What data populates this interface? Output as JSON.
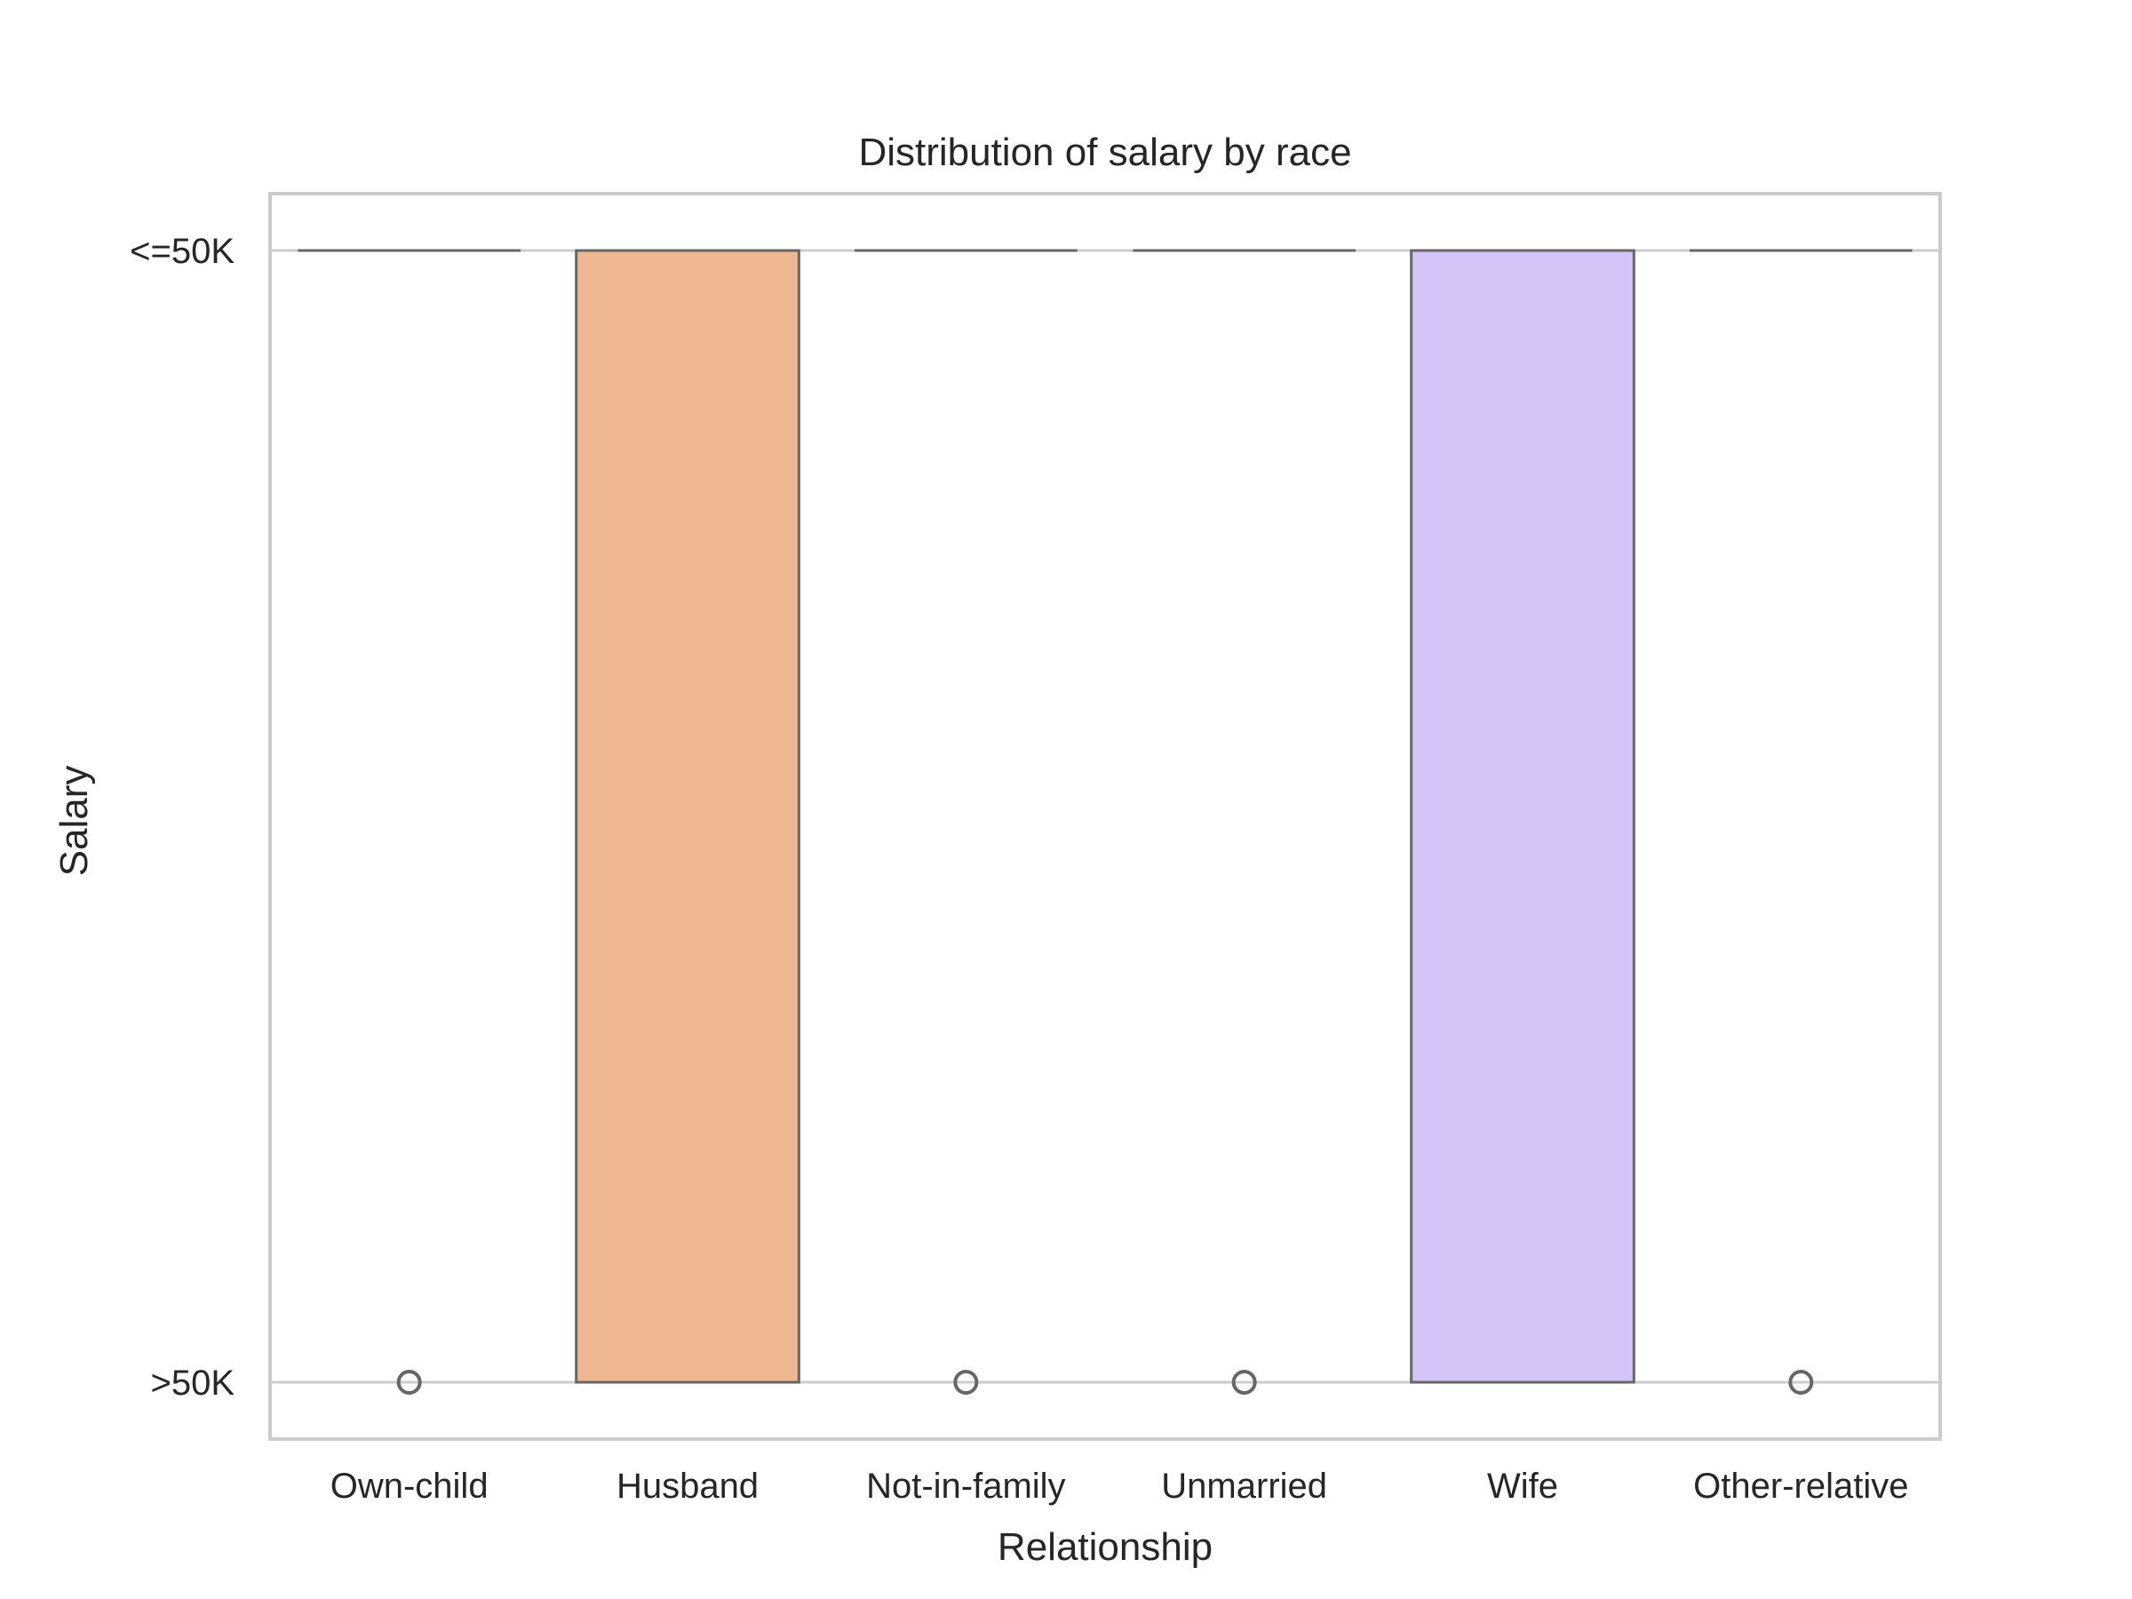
{
  "chart_data": {
    "type": "box",
    "title": "Distribution of salary by race",
    "xlabel": "Relationship",
    "ylabel": "Salary",
    "y_categories": [
      "<=50K",
      ">50K"
    ],
    "grid": "horizontal",
    "categories": [
      "Own-child",
      "Husband",
      "Not-in-family",
      "Unmarried",
      "Wife",
      "Other-relative"
    ],
    "boxes": [
      {
        "category": "Own-child",
        "q1": "<=50K",
        "median": "<=50K",
        "q3": "<=50K",
        "fliers": [
          ">50K"
        ],
        "color": "#9ecae1"
      },
      {
        "category": "Husband",
        "q1": "<=50K",
        "median": "<=50K",
        "q3": ">50K",
        "fliers": [],
        "color": "#f0b793"
      },
      {
        "category": "Not-in-family",
        "q1": "<=50K",
        "median": "<=50K",
        "q3": "<=50K",
        "fliers": [
          ">50K"
        ],
        "color": "#a8d5a2"
      },
      {
        "category": "Unmarried",
        "q1": "<=50K",
        "median": "<=50K",
        "q3": "<=50K",
        "fliers": [
          ">50K"
        ],
        "color": "#f4a6a6"
      },
      {
        "category": "Wife",
        "q1": "<=50K",
        "median": "<=50K",
        "q3": ">50K",
        "fliers": [],
        "color": "#d3c4f6"
      },
      {
        "category": "Other-relative",
        "q1": "<=50K",
        "median": "<=50K",
        "q3": "<=50K",
        "fliers": [
          ">50K"
        ],
        "color": "#c9a98c"
      }
    ],
    "colors": {
      "frame": "#cccccc",
      "grid": "#cccccc",
      "box_edge": "#666666",
      "text": "#262626"
    }
  }
}
